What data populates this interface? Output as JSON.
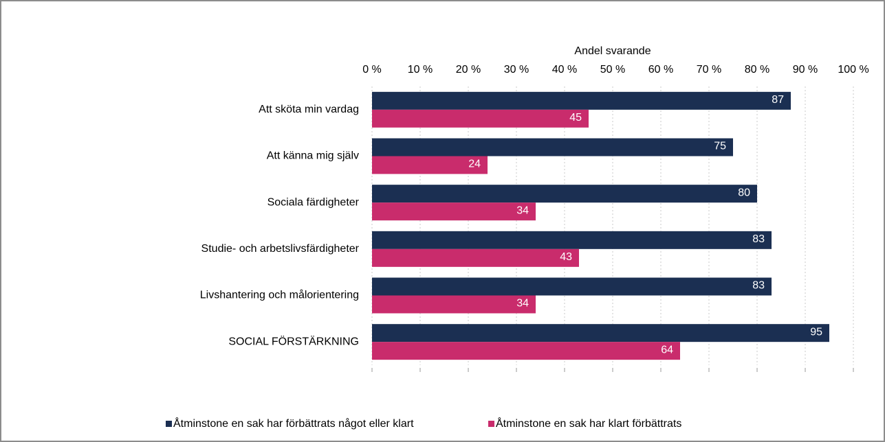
{
  "chart_data": {
    "type": "hbar",
    "x_label": "Andel svarande",
    "categories": [
      "Att sköta min vardag",
      "Att känna mig själv",
      "Sociala färdigheter",
      "Studie- och arbetslivsfärdigheter",
      "Livshantering och målorientering",
      "SOCIAL FÖRSTÄRKNING"
    ],
    "series": [
      {
        "name": "Åtminstone en sak har förbättrats något eller klart",
        "color": "#1b2f52",
        "values": [
          87,
          75,
          80,
          83,
          83,
          95
        ]
      },
      {
        "name": "Åtminstone en sak har klart förbättrats",
        "color": "#c92c6c",
        "values": [
          45,
          24,
          34,
          43,
          34,
          64
        ]
      }
    ],
    "xlim": [
      0,
      100
    ],
    "xticks": [
      {
        "value": 0,
        "label": "0 %"
      },
      {
        "value": 10,
        "label": "10 %"
      },
      {
        "value": 20,
        "label": "20 %"
      },
      {
        "value": 30,
        "label": "30 %"
      },
      {
        "value": 40,
        "label": "40 %"
      },
      {
        "value": 50,
        "label": "50 %"
      },
      {
        "value": 60,
        "label": "60 %"
      },
      {
        "value": 70,
        "label": "70 %"
      },
      {
        "value": 80,
        "label": "80 %"
      },
      {
        "value": 90,
        "label": "90 %"
      },
      {
        "value": 100,
        "label": "100 %"
      }
    ],
    "grid": true,
    "legend": "bottom"
  }
}
